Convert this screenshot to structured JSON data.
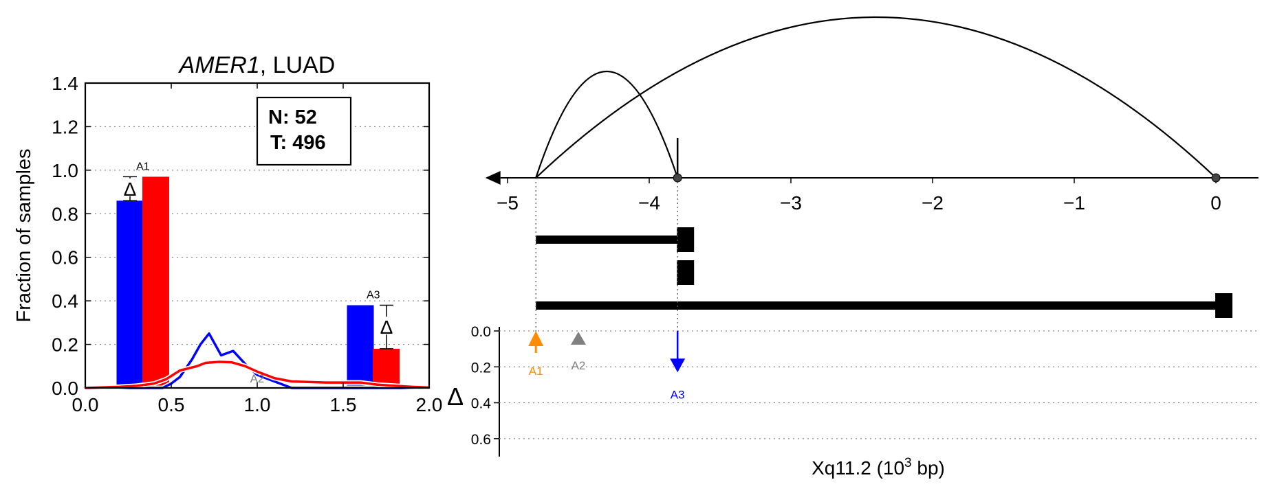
{
  "chart_data": [
    {
      "type": "bar",
      "title_gene": "AMER1",
      "title_rest": ", LUAD",
      "ylabel": "Fraction of samples",
      "xlim": [
        0,
        2
      ],
      "ylim": [
        0,
        1.4
      ],
      "xticks": [
        "0.0",
        "0.5",
        "1.0",
        "1.5",
        "2.0"
      ],
      "yticks": [
        "0.0",
        "0.2",
        "0.4",
        "0.6",
        "0.8",
        "1.0",
        "1.2",
        "1.4"
      ],
      "grid": "horizontal dotted",
      "legend": {
        "n_label": "N: 52",
        "t_label": "T: 496"
      },
      "colors": {
        "normal": "#0000ff",
        "tumor": "#ff0000",
        "a2": "#808080"
      },
      "bars": [
        {
          "label": "A1",
          "x_blue": 0.26,
          "blue": 0.86,
          "x_red": 0.41,
          "red": 0.97,
          "delta_symbol": "Δ",
          "delta_at": "blue"
        },
        {
          "label": "A3",
          "x_blue": 1.6,
          "blue": 0.38,
          "x_red": 1.75,
          "red": 0.18,
          "delta_symbol": "Δ",
          "delta_at": "red"
        }
      ],
      "a2_marker": {
        "label": "A2",
        "x": 1.0
      },
      "series": [
        {
          "name": "N",
          "color": "#0000ff",
          "x": [
            0.0,
            0.45,
            0.5,
            0.55,
            0.62,
            0.67,
            0.72,
            0.79,
            0.86,
            0.93,
            1.0,
            1.1,
            1.2,
            1.3,
            2.0
          ],
          "y": [
            0.0,
            0.0,
            0.02,
            0.05,
            0.13,
            0.2,
            0.25,
            0.15,
            0.17,
            0.11,
            0.06,
            0.03,
            0.0,
            0.0,
            0.0
          ]
        },
        {
          "name": "T",
          "color": "#ff0000",
          "x": [
            0.0,
            0.2,
            0.3,
            0.4,
            0.47,
            0.55,
            0.65,
            0.7,
            0.78,
            0.85,
            0.93,
            1.0,
            1.1,
            1.2,
            1.4,
            1.6,
            1.7,
            1.8,
            1.9,
            2.0
          ],
          "y": [
            0.0,
            0.005,
            0.01,
            0.02,
            0.04,
            0.08,
            0.1,
            0.115,
            0.12,
            0.118,
            0.1,
            0.075,
            0.045,
            0.03,
            0.025,
            0.025,
            0.015,
            0.01,
            0.005,
            0.002
          ]
        }
      ]
    },
    {
      "type": "diagram",
      "xlabel_base": "Xq11.2 (10",
      "xlabel_sup": "3",
      "xlabel_tail": " bp)",
      "xlim": [
        -5.2,
        0.3
      ],
      "xticks": [
        -5,
        -4,
        -3,
        -2,
        -1,
        0
      ],
      "xtick_labels": [
        "−5",
        "−4",
        "−3",
        "−2",
        "−1",
        "0"
      ],
      "arcs": [
        {
          "from": -4.8,
          "to": -3.8,
          "height": "low"
        },
        {
          "from": -4.8,
          "to": 0.0,
          "height": "high"
        }
      ],
      "nodes": [
        -3.8,
        0.0
      ],
      "arrow_direction": "left",
      "transcripts": [
        {
          "start": -4.8,
          "end": -3.8
        },
        {
          "start": -3.8,
          "end": -3.8
        },
        {
          "start": -4.8,
          "end": 0.0
        }
      ],
      "delta_axis": {
        "label": "Δ",
        "ylim": [
          0,
          0.7
        ],
        "yticks": [
          "0.0",
          "0.2",
          "0.4",
          "0.6"
        ],
        "markers": [
          {
            "label": "A1",
            "x": -4.8,
            "delta": -0.07,
            "color": "#ff8c00",
            "direction": "up"
          },
          {
            "label": "A2",
            "x": -4.5,
            "delta": 0.0,
            "color": "#808080",
            "direction": "none"
          },
          {
            "label": "A3",
            "x": -3.8,
            "delta": 0.2,
            "color": "#0000ff",
            "direction": "down"
          }
        ]
      }
    }
  ]
}
